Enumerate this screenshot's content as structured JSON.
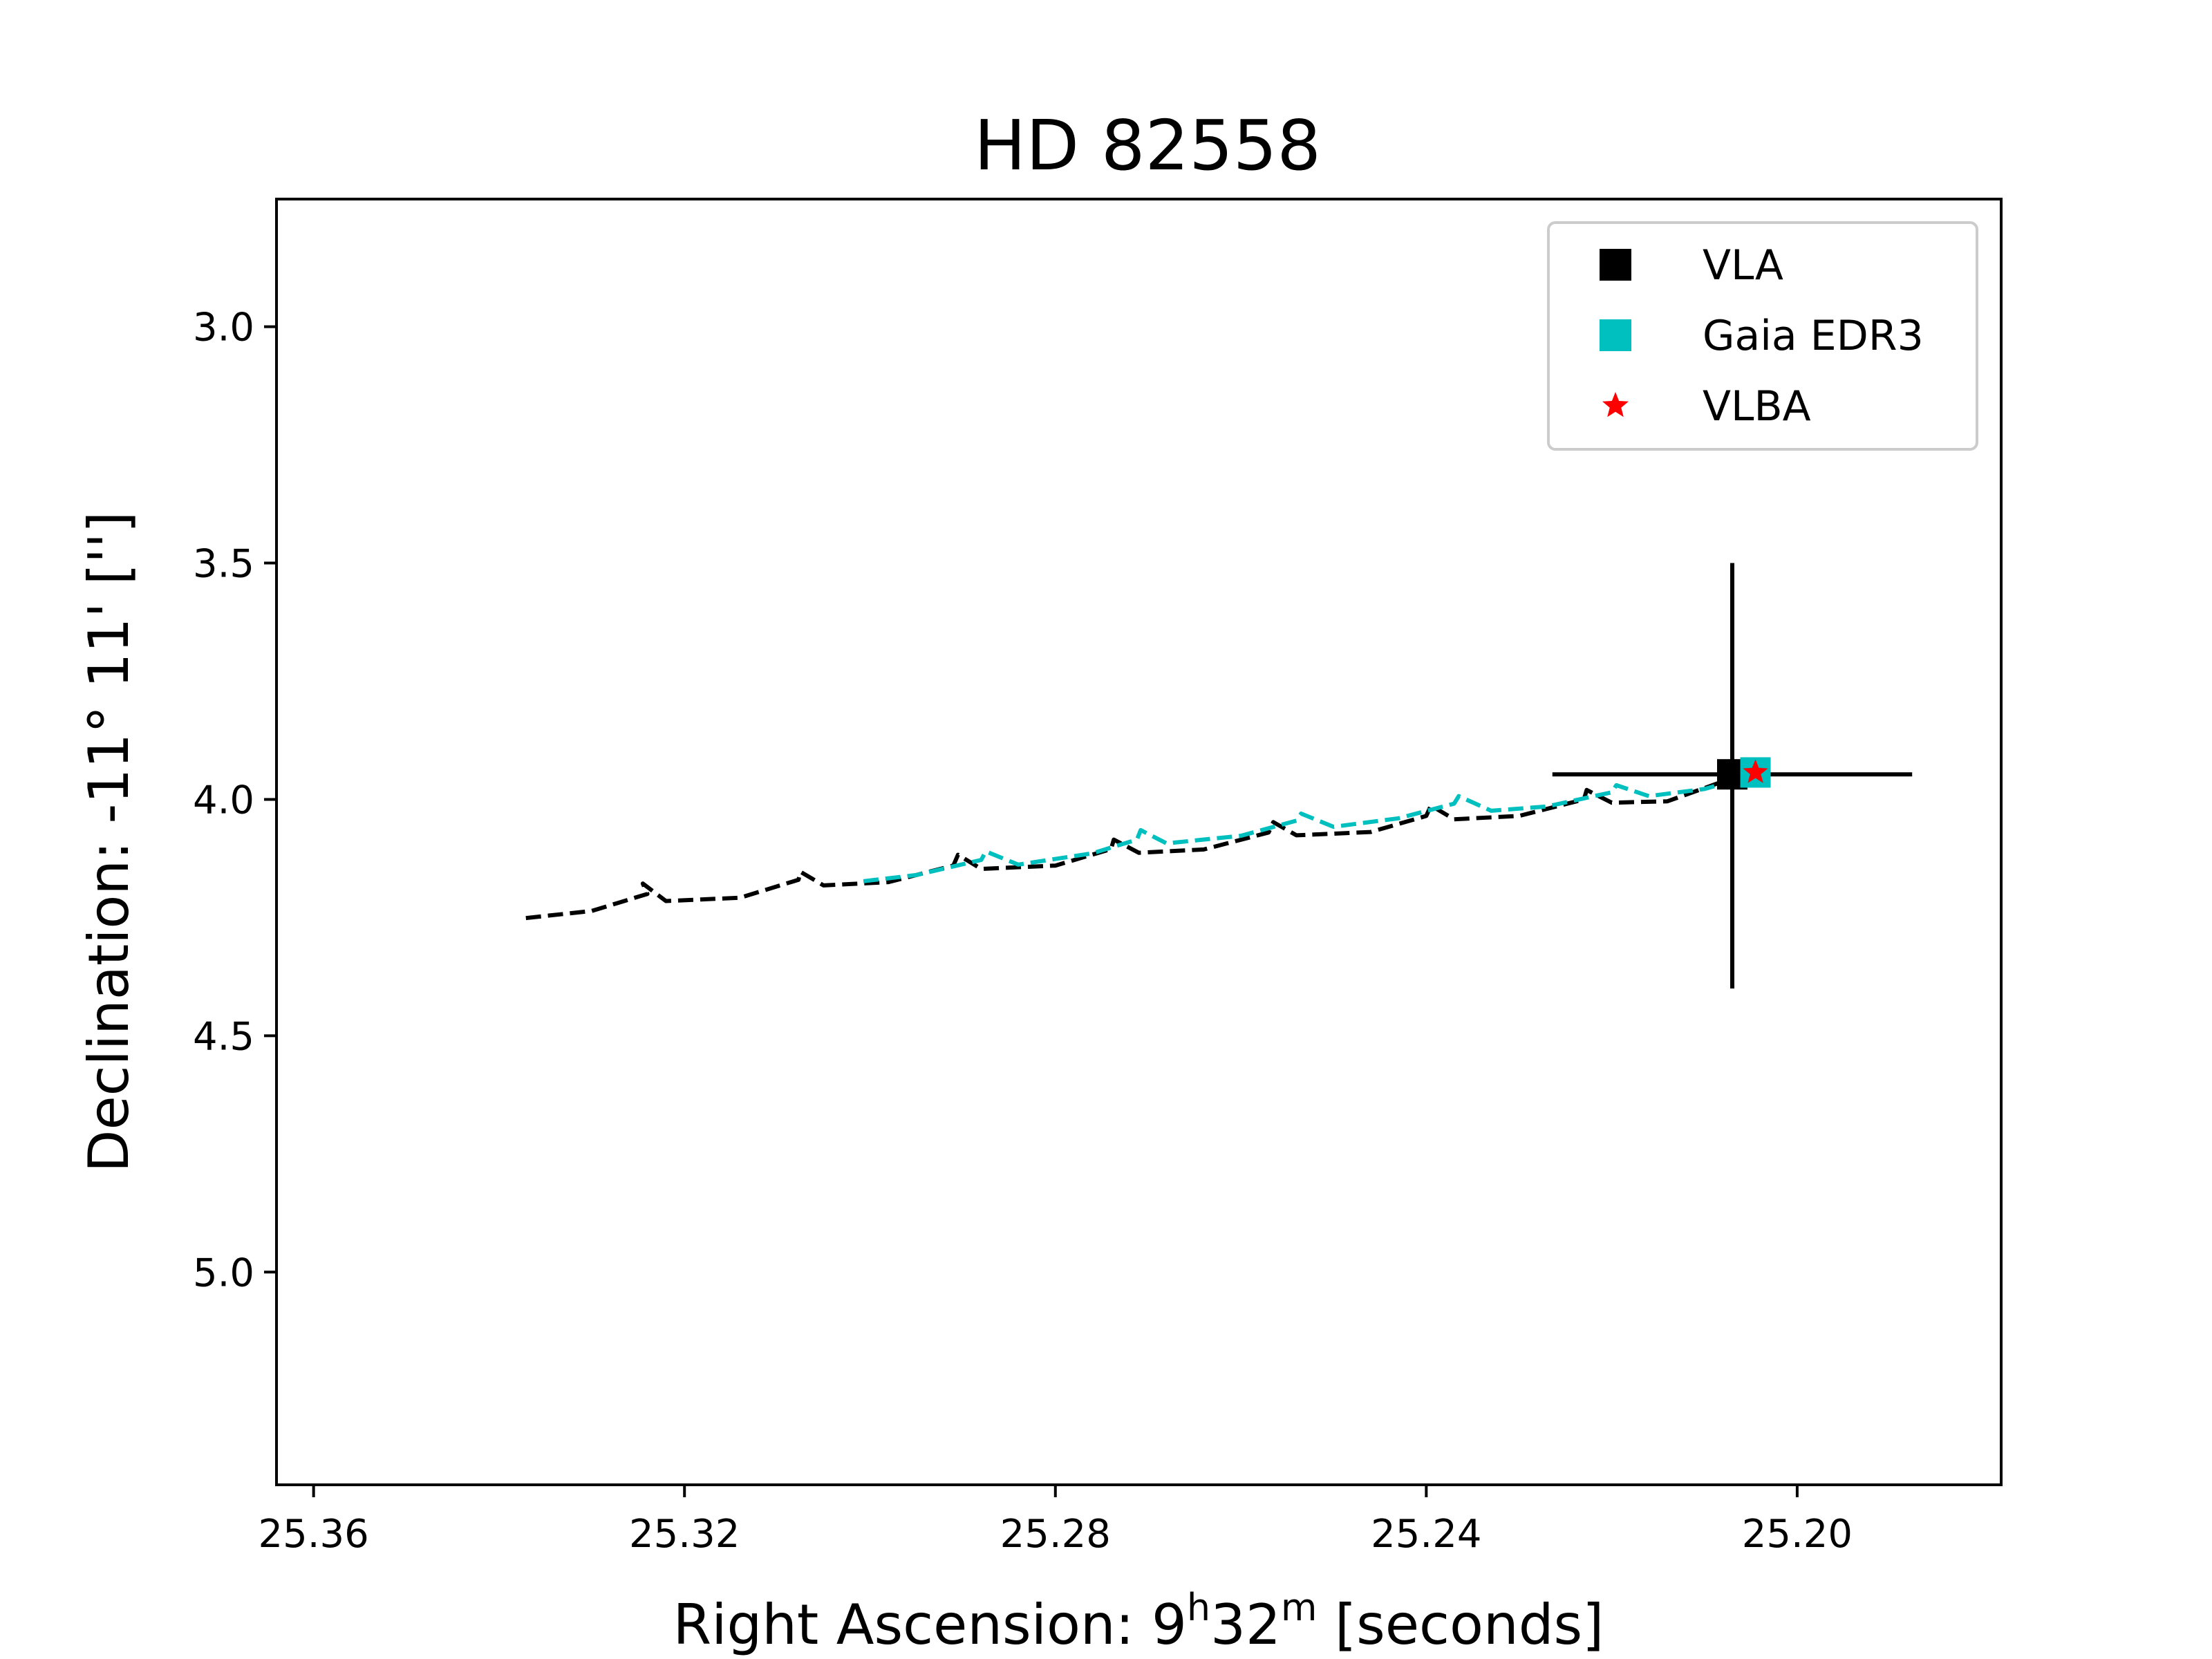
{
  "chart_data": {
    "type": "line",
    "title": "HD 82558",
    "xlabel": {
      "prefix": "Right Ascension: 9",
      "sup1": "h",
      "mid": "32",
      "sup2": "m",
      "suffix": " [seconds]"
    },
    "ylabel": "Declination: -11° 11' ['']",
    "xlim": [
      25.364,
      25.178
    ],
    "ylim": [
      5.45,
      2.73
    ],
    "y_inverted": true,
    "x_inverted": true,
    "grid": false,
    "xticks": [
      {
        "value": 25.36,
        "label": "25.36"
      },
      {
        "value": 25.32,
        "label": "25.32"
      },
      {
        "value": 25.28,
        "label": "25.28"
      },
      {
        "value": 25.24,
        "label": "25.24"
      },
      {
        "value": 25.2,
        "label": "25.20"
      }
    ],
    "yticks": [
      {
        "value": 3.0,
        "label": "3.0"
      },
      {
        "value": 3.5,
        "label": "3.5"
      },
      {
        "value": 4.0,
        "label": "4.0"
      },
      {
        "value": 4.5,
        "label": "4.5"
      },
      {
        "value": 5.0,
        "label": "5.0"
      }
    ],
    "legend": {
      "placement": "top-right",
      "entries": [
        {
          "label": "VLA",
          "marker": "square",
          "color": "#000000"
        },
        {
          "label": "Gaia EDR3",
          "marker": "square",
          "color": "#00bfbf"
        },
        {
          "label": "VLBA",
          "marker": "star",
          "color": "#ff0000"
        }
      ]
    },
    "series": [
      {
        "style": "dashed",
        "color": "#000000",
        "points": [
          [
            25.3371,
            4.251
          ],
          [
            25.33,
            4.236
          ],
          [
            25.324,
            4.2
          ],
          [
            25.3245,
            4.178
          ],
          [
            25.322,
            4.215
          ],
          [
            25.314,
            4.208
          ],
          [
            25.3077,
            4.17
          ],
          [
            25.3075,
            4.153
          ],
          [
            25.305,
            4.182
          ],
          [
            25.298,
            4.175
          ],
          [
            25.291,
            4.14
          ],
          [
            25.2905,
            4.117
          ],
          [
            25.288,
            4.147
          ],
          [
            25.28,
            4.14
          ],
          [
            25.274,
            4.105
          ],
          [
            25.2737,
            4.085
          ],
          [
            25.271,
            4.113
          ],
          [
            25.264,
            4.106
          ],
          [
            25.257,
            4.07
          ],
          [
            25.2565,
            4.048
          ],
          [
            25.254,
            4.076
          ],
          [
            25.246,
            4.069
          ],
          [
            25.24,
            4.035
          ],
          [
            25.2395,
            4.013
          ],
          [
            25.237,
            4.042
          ],
          [
            25.23,
            4.035
          ],
          [
            25.223,
            4.0
          ],
          [
            25.2227,
            3.98
          ],
          [
            25.22,
            4.007
          ],
          [
            25.214,
            4.004
          ],
          [
            25.207,
            3.955
          ]
        ]
      },
      {
        "style": "dashed",
        "color": "#00bfbf",
        "points": [
          [
            25.3007,
            4.173
          ],
          [
            25.295,
            4.16
          ],
          [
            25.288,
            4.128
          ],
          [
            25.2875,
            4.11
          ],
          [
            25.284,
            4.138
          ],
          [
            25.276,
            4.114
          ],
          [
            25.2712,
            4.085
          ],
          [
            25.2708,
            4.065
          ],
          [
            25.268,
            4.093
          ],
          [
            25.26,
            4.077
          ],
          [
            25.254,
            4.045
          ],
          [
            25.2535,
            4.03
          ],
          [
            25.25,
            4.058
          ],
          [
            25.243,
            4.04
          ],
          [
            25.237,
            4.009
          ],
          [
            25.2365,
            3.993
          ],
          [
            25.233,
            4.024
          ],
          [
            25.227,
            4.015
          ],
          [
            25.22,
            3.985
          ],
          [
            25.2195,
            3.97
          ],
          [
            25.216,
            3.993
          ],
          [
            25.21,
            3.978
          ],
          [
            25.204,
            3.945
          ]
        ]
      }
    ],
    "points": [
      {
        "label": "VLA",
        "x": 25.207,
        "y": 3.947,
        "marker": "square",
        "color": "#000000",
        "x_err": [
          25.2264,
          25.1876
        ],
        "y_err": [
          3.5,
          4.4
        ]
      },
      {
        "label": "Gaia EDR3",
        "x": 25.2045,
        "y": 3.943,
        "marker": "square",
        "color": "#00bfbf"
      },
      {
        "label": "VLBA",
        "x": 25.2045,
        "y": 3.943,
        "marker": "star",
        "color": "#ff0000"
      }
    ]
  }
}
